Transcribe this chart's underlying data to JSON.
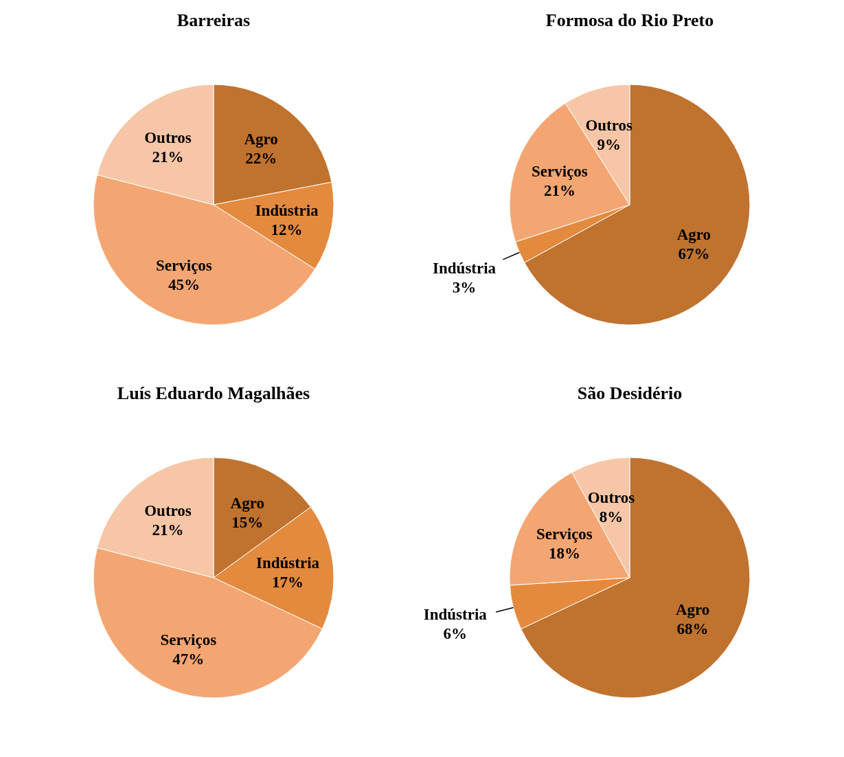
{
  "chart_data": [
    {
      "type": "pie",
      "title": "Barreiras",
      "categories": [
        "Agro",
        "Indústria",
        "Serviços",
        "Outros"
      ],
      "values": [
        22,
        12,
        45,
        21
      ],
      "value_labels": [
        "22%",
        "12%",
        "45%",
        "21%"
      ],
      "colors": [
        "#c0722f",
        "#e38a3e",
        "#f4a672",
        "#f6c6a6"
      ],
      "legend": false
    },
    {
      "type": "pie",
      "title": "Formosa do Rio Preto",
      "categories": [
        "Agro",
        "Indústria",
        "Serviços",
        "Outros"
      ],
      "values": [
        67,
        3,
        21,
        9
      ],
      "value_labels": [
        "67%",
        "3%",
        "21%",
        "9%"
      ],
      "colors": [
        "#c0722f",
        "#e38a3e",
        "#f4a672",
        "#f6c6a6"
      ],
      "legend": false
    },
    {
      "type": "pie",
      "title": "Luís Eduardo Magalhães",
      "categories": [
        "Agro",
        "Indústria",
        "Serviços",
        "Outros"
      ],
      "values": [
        15,
        17,
        47,
        21
      ],
      "value_labels": [
        "15%",
        "17%",
        "47%",
        "21%"
      ],
      "colors": [
        "#c0722f",
        "#e38a3e",
        "#f4a672",
        "#f6c6a6"
      ],
      "legend": false
    },
    {
      "type": "pie",
      "title": "São Desidério",
      "categories": [
        "Agro",
        "Indústria",
        "Serviços",
        "Outros"
      ],
      "values": [
        68,
        6,
        18,
        8
      ],
      "value_labels": [
        "68%",
        "6%",
        "18%",
        "8%"
      ],
      "colors": [
        "#c0722f",
        "#e38a3e",
        "#f4a672",
        "#f6c6a6"
      ],
      "legend": false
    }
  ]
}
